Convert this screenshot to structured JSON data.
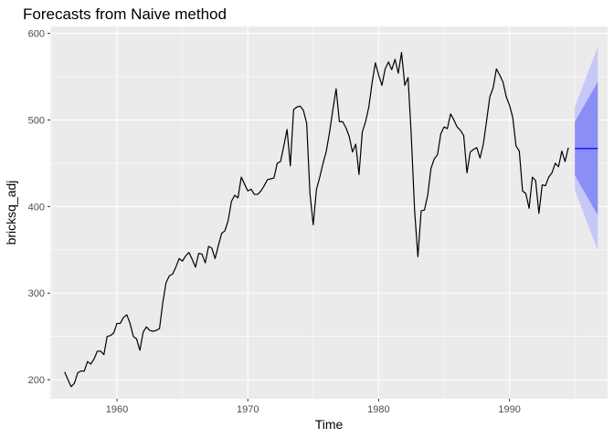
{
  "chart_data": {
    "type": "line",
    "title": "Forecasts from Naive method",
    "xlabel": "Time",
    "ylabel": "bricksq_adj",
    "xlim": [
      1954.9,
      1997.5
    ],
    "ylim": [
      178,
      608
    ],
    "x_ticks": [
      1960,
      1970,
      1980,
      1990
    ],
    "y_ticks": [
      200,
      300,
      400,
      500,
      600
    ],
    "grid": true,
    "colors": {
      "panel": "#ebebeb",
      "grid_major": "#ffffff",
      "series": "#000000",
      "forecast_line": "#0000ff",
      "band_80": "#8a8ef5",
      "band_95": "#c7c8f7"
    },
    "series": [
      {
        "start": 1956,
        "frequency": 4,
        "values": [
          209,
          200,
          192,
          196,
          208,
          210,
          210,
          221,
          218,
          224,
          233,
          233,
          229,
          250,
          251,
          254,
          265,
          265,
          272,
          275,
          265,
          250,
          247,
          234,
          255,
          261,
          257,
          256,
          257,
          259,
          289,
          312,
          320,
          322,
          330,
          340,
          337,
          343,
          347,
          339,
          330,
          346,
          345,
          335,
          354,
          352,
          340,
          355,
          369,
          372,
          384,
          406,
          413,
          410,
          434,
          426,
          418,
          420,
          414,
          414,
          418,
          424,
          431,
          432,
          433,
          450,
          452,
          470,
          489,
          447,
          512,
          515,
          516,
          511,
          496,
          415,
          379,
          420,
          434,
          450,
          464,
          486,
          512,
          536,
          498,
          498,
          491,
          481,
          463,
          472,
          437,
          486,
          498,
          515,
          543,
          566,
          552,
          540,
          559,
          567,
          558,
          570,
          554,
          578,
          540,
          549,
          480,
          395,
          342,
          395,
          396,
          413,
          444,
          455,
          460,
          484,
          492,
          490,
          507,
          500,
          492,
          488,
          482,
          439,
          463,
          466,
          468,
          456,
          472,
          499,
          527,
          537,
          559,
          552,
          544,
          527,
          517,
          503,
          470,
          464,
          418,
          415,
          398,
          434,
          430,
          392,
          425,
          424,
          434,
          439,
          450,
          446,
          464,
          452,
          468
        ]
      }
    ],
    "forecast": {
      "x_start": 1995.0,
      "x_end": 1996.75,
      "point": 467,
      "lo80_start": 436,
      "lo80_end": 390,
      "hi80_start": 498,
      "hi80_end": 544,
      "lo95_start": 419,
      "lo95_end": 349,
      "hi95_start": 515,
      "hi95_end": 585
    }
  }
}
